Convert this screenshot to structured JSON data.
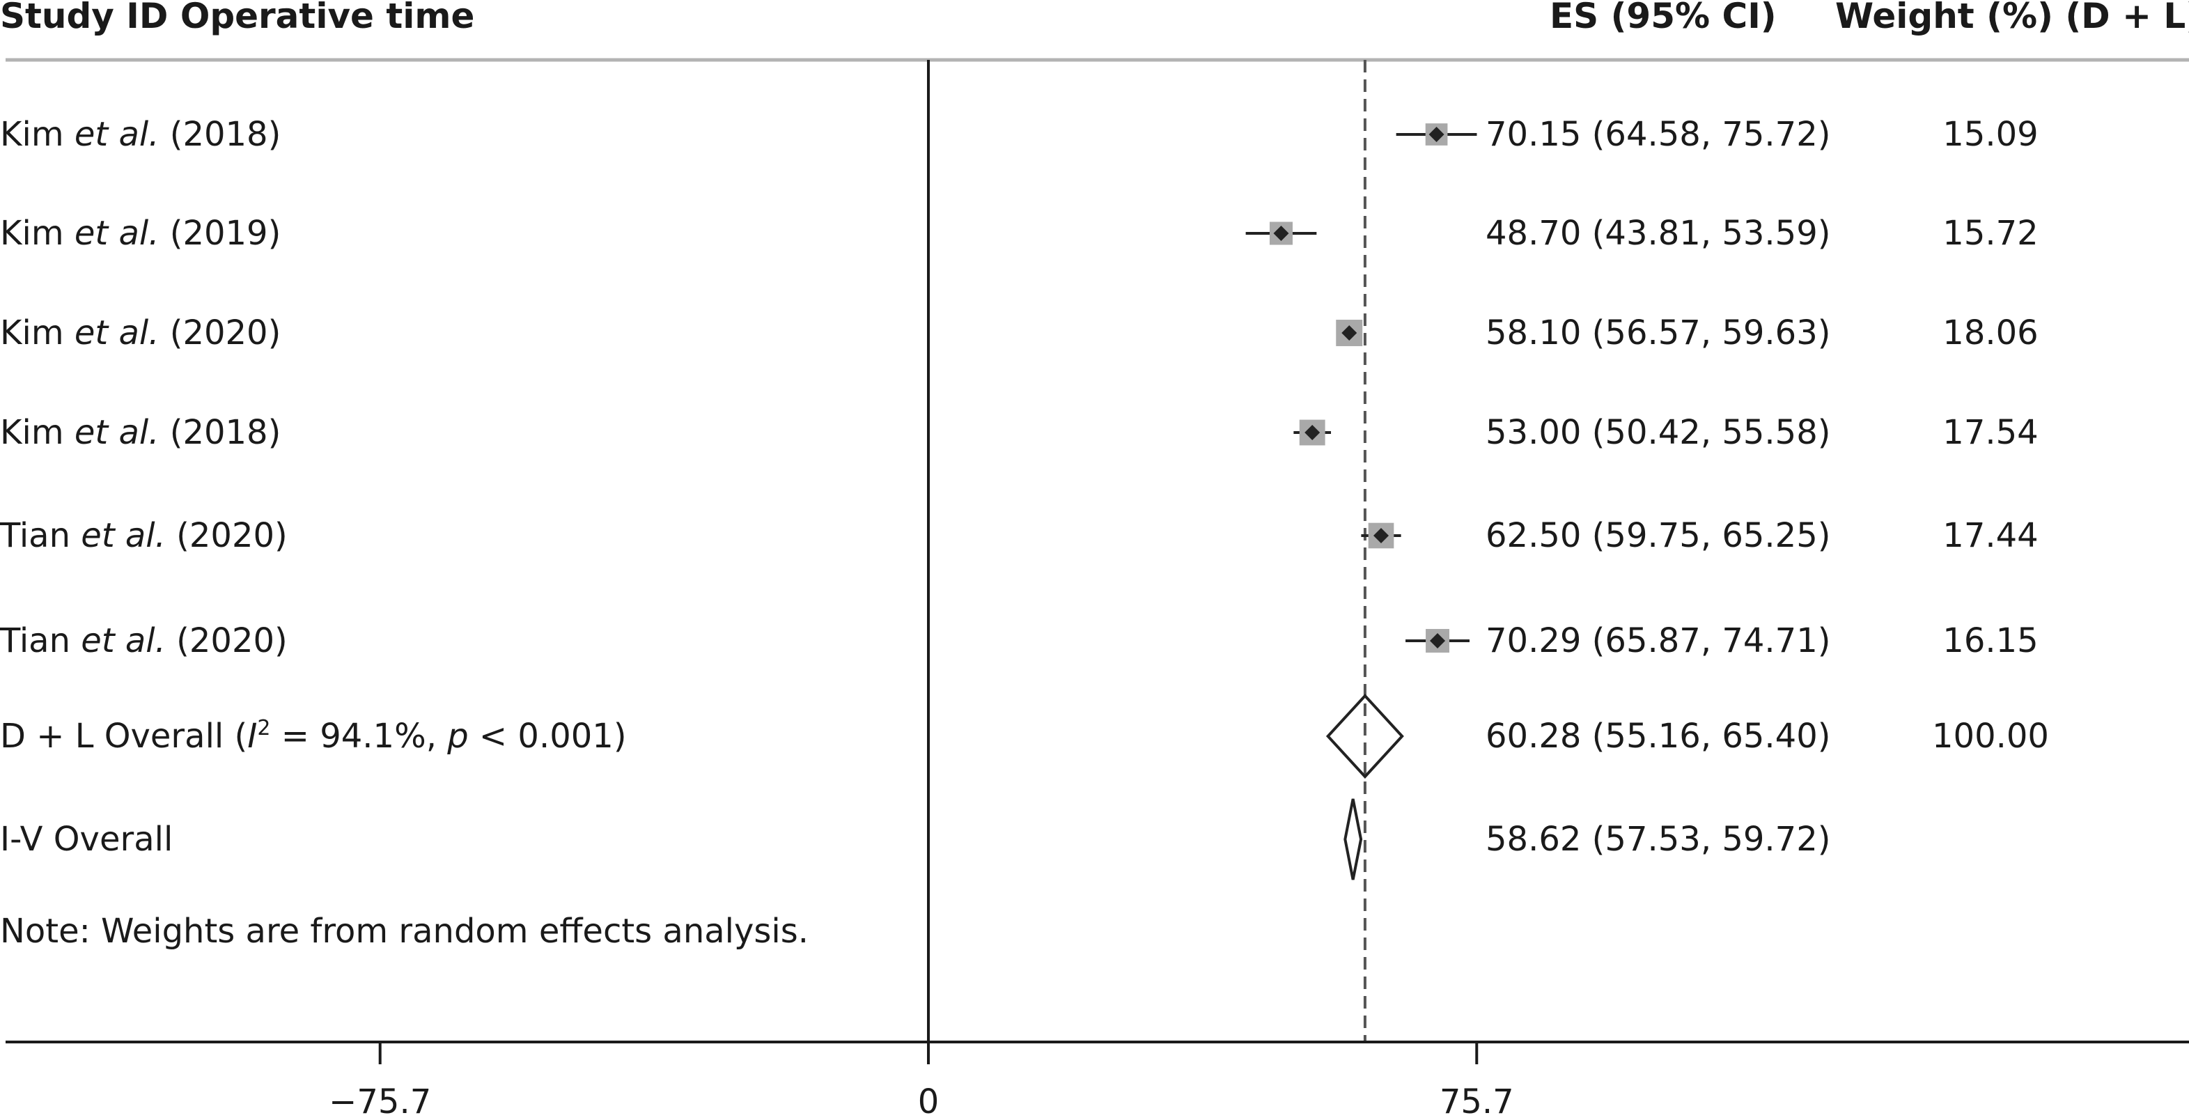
{
  "header": {
    "study_col": "Study ID Operative time",
    "es_col": "ES (95% CI)",
    "weight_col": "Weight (%) (D + L)"
  },
  "chart_data": {
    "type": "forest",
    "xaxis": {
      "ticks": [
        -75.7,
        0,
        75.7
      ],
      "tick_labels": [
        "−75.7",
        "0",
        "75.7"
      ],
      "xlim": [
        -128,
        174
      ]
    },
    "null_line": 0,
    "overall_reference": 60.28,
    "studies": [
      {
        "label_pre": "Kim ",
        "label_em": "et al.",
        "label_post": " (2018)",
        "es": 70.15,
        "lower": 64.58,
        "upper": 75.72,
        "es_text": "70.15 (64.58, 75.72)",
        "weight": 15.09,
        "weight_text": "15.09"
      },
      {
        "label_pre": "Kim ",
        "label_em": "et al.",
        "label_post": " (2019)",
        "es": 48.7,
        "lower": 43.81,
        "upper": 53.59,
        "es_text": "48.70 (43.81, 53.59)",
        "weight": 15.72,
        "weight_text": "15.72"
      },
      {
        "label_pre": "Kim ",
        "label_em": "et al.",
        "label_post": " (2020)",
        "es": 58.1,
        "lower": 56.57,
        "upper": 59.63,
        "es_text": "58.10 (56.57, 59.63)",
        "weight": 18.06,
        "weight_text": "18.06"
      },
      {
        "label_pre": "Kim ",
        "label_em": "et al.",
        "label_post": " (2018)",
        "es": 53.0,
        "lower": 50.42,
        "upper": 55.58,
        "es_text": "53.00 (50.42, 55.58)",
        "weight": 17.54,
        "weight_text": "17.54"
      },
      {
        "label_pre": "Tian ",
        "label_em": "et al.",
        "label_post": " (2020)",
        "es": 62.5,
        "lower": 59.75,
        "upper": 65.25,
        "es_text": "62.50 (59.75, 65.25)",
        "weight": 17.44,
        "weight_text": "17.44"
      },
      {
        "label_pre": "Tian ",
        "label_em": "et al.",
        "label_post": " (2020)",
        "es": 70.29,
        "lower": 65.87,
        "upper": 74.71,
        "es_text": "70.29 (65.87, 74.71)",
        "weight": 16.15,
        "weight_text": "16.15"
      }
    ],
    "overall": [
      {
        "label_pre": "D + L Overall (",
        "label_em": "I",
        "label_sup": "2",
        "label_mid": " = 94.1%, ",
        "label_em2": "p",
        "label_post": " < 0.001)",
        "es": 60.28,
        "lower": 55.16,
        "upper": 65.4,
        "es_text": "60.28 (55.16, 65.40)",
        "weight_text": "100.00"
      },
      {
        "label_pre": "I-V Overall",
        "es": 58.62,
        "lower": 57.53,
        "upper": 59.72,
        "es_text": "58.62 (57.53, 59.72)",
        "weight_text": ""
      }
    ],
    "note": "Note: Weights are from random effects analysis."
  },
  "colors": {
    "text": "#1a1a1a",
    "box": "#a9a9a9",
    "marker": "#222222",
    "rule": "#b3b3b3",
    "axis": "#1a1a1a"
  }
}
